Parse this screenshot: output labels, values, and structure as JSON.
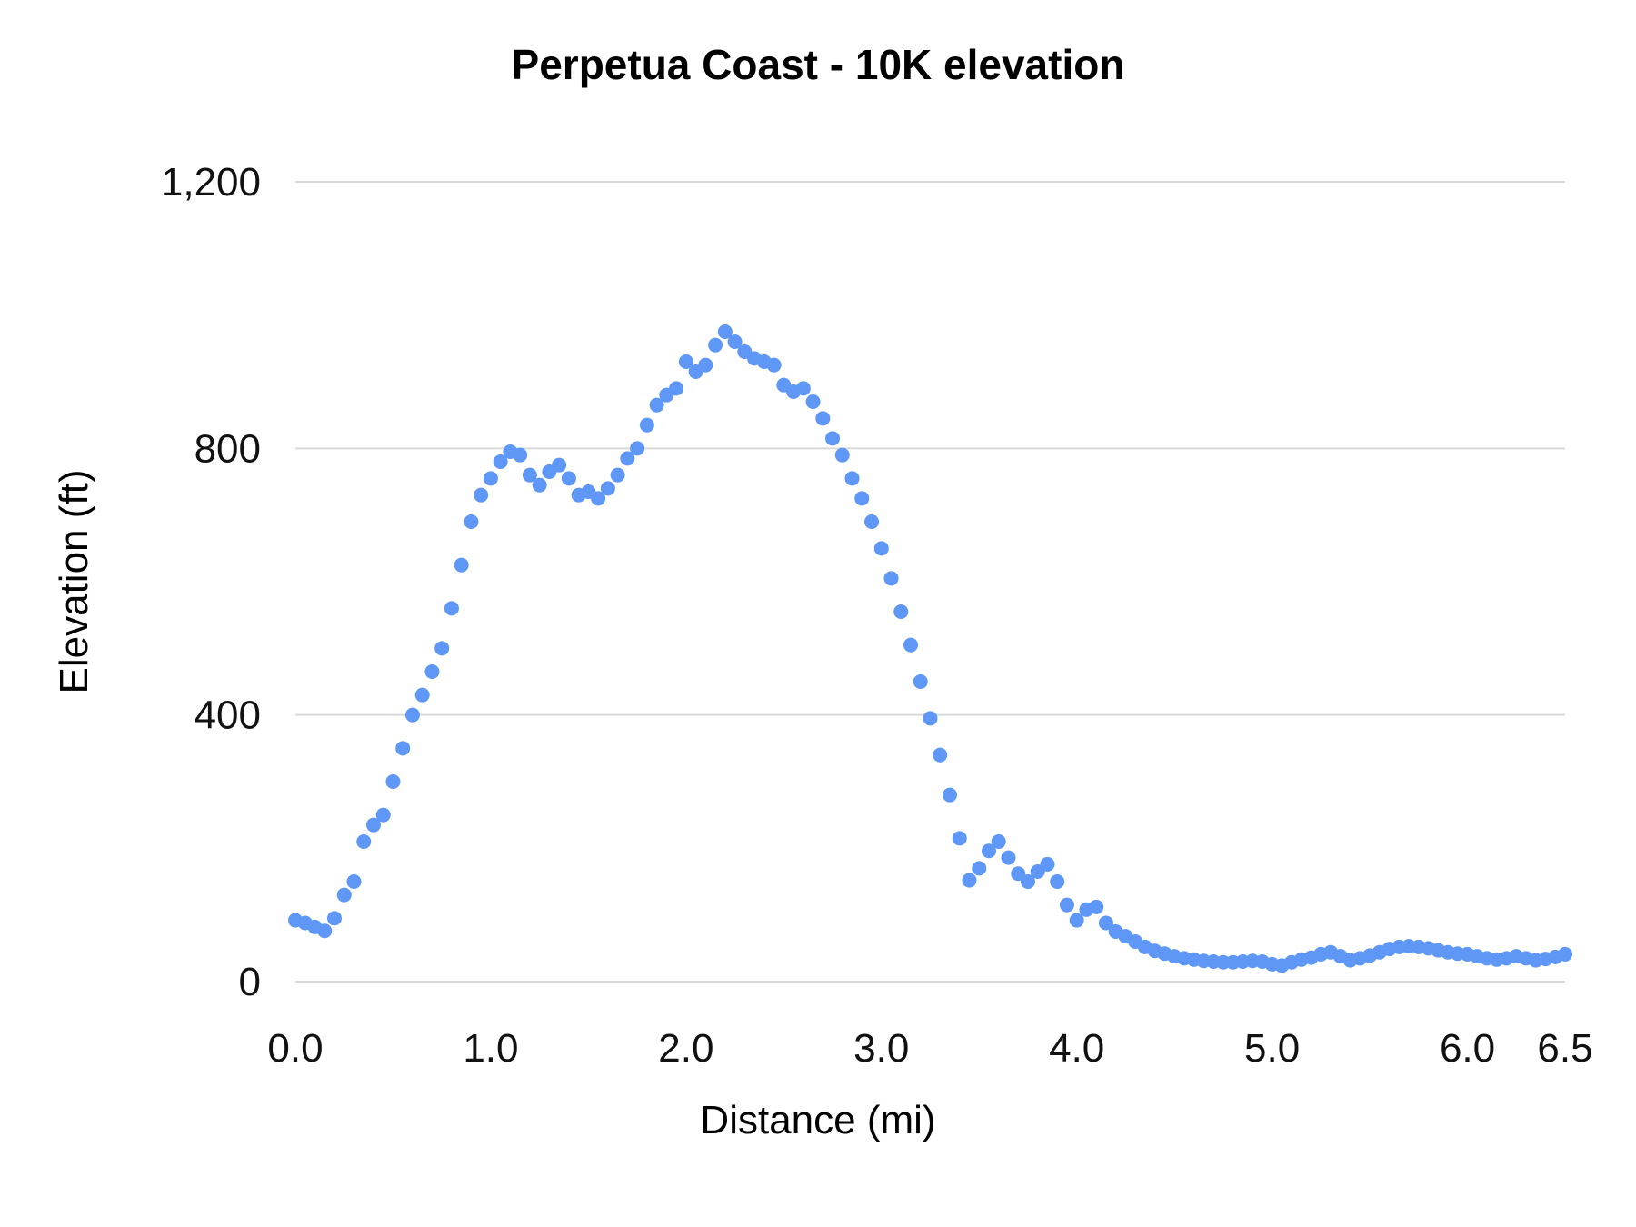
{
  "chart_data": {
    "type": "scatter",
    "title": "Perpetua Coast - 10K elevation",
    "xlabel": "Distance (mi)",
    "ylabel": "Elevation (ft)",
    "xlim": [
      0,
      6.5
    ],
    "ylim": [
      0,
      1200
    ],
    "x_ticks": [
      0,
      1,
      2,
      3,
      4,
      5,
      6,
      6.5
    ],
    "x_tick_labels": [
      "0.0",
      "1.0",
      "2.0",
      "3.0",
      "4.0",
      "5.0",
      "6.0",
      "6.5"
    ],
    "y_ticks": [
      0,
      400,
      800,
      1200
    ],
    "y_tick_labels": [
      "0",
      "400",
      "800",
      "1,200"
    ],
    "grid": true,
    "legend": "none",
    "point_color": "#5e97f6",
    "grid_color": "#d9d9d9",
    "points": [
      [
        0,
        92
      ],
      [
        0.05,
        88
      ],
      [
        0.1,
        82
      ],
      [
        0.15,
        76
      ],
      [
        0.2,
        95
      ],
      [
        0.25,
        130
      ],
      [
        0.3,
        150
      ],
      [
        0.35,
        210
      ],
      [
        0.4,
        235
      ],
      [
        0.45,
        250
      ],
      [
        0.5,
        300
      ],
      [
        0.55,
        350
      ],
      [
        0.6,
        400
      ],
      [
        0.65,
        430
      ],
      [
        0.7,
        465
      ],
      [
        0.75,
        500
      ],
      [
        0.8,
        560
      ],
      [
        0.85,
        625
      ],
      [
        0.9,
        690
      ],
      [
        0.95,
        730
      ],
      [
        1,
        755
      ],
      [
        1.05,
        780
      ],
      [
        1.1,
        795
      ],
      [
        1.15,
        790
      ],
      [
        1.2,
        760
      ],
      [
        1.25,
        745
      ],
      [
        1.3,
        765
      ],
      [
        1.35,
        775
      ],
      [
        1.4,
        755
      ],
      [
        1.45,
        730
      ],
      [
        1.5,
        735
      ],
      [
        1.55,
        725
      ],
      [
        1.6,
        740
      ],
      [
        1.65,
        760
      ],
      [
        1.7,
        785
      ],
      [
        1.75,
        800
      ],
      [
        1.8,
        835
      ],
      [
        1.85,
        865
      ],
      [
        1.9,
        880
      ],
      [
        1.95,
        890
      ],
      [
        2,
        930
      ],
      [
        2.05,
        915
      ],
      [
        2.1,
        925
      ],
      [
        2.15,
        955
      ],
      [
        2.2,
        975
      ],
      [
        2.25,
        960
      ],
      [
        2.3,
        945
      ],
      [
        2.35,
        935
      ],
      [
        2.4,
        930
      ],
      [
        2.45,
        925
      ],
      [
        2.5,
        895
      ],
      [
        2.55,
        885
      ],
      [
        2.6,
        890
      ],
      [
        2.65,
        870
      ],
      [
        2.7,
        845
      ],
      [
        2.75,
        815
      ],
      [
        2.8,
        790
      ],
      [
        2.85,
        755
      ],
      [
        2.9,
        725
      ],
      [
        2.95,
        690
      ],
      [
        3,
        650
      ],
      [
        3.05,
        605
      ],
      [
        3.1,
        555
      ],
      [
        3.15,
        505
      ],
      [
        3.2,
        450
      ],
      [
        3.25,
        395
      ],
      [
        3.3,
        340
      ],
      [
        3.35,
        280
      ],
      [
        3.4,
        215
      ],
      [
        3.45,
        152
      ],
      [
        3.5,
        170
      ],
      [
        3.55,
        196
      ],
      [
        3.6,
        210
      ],
      [
        3.65,
        186
      ],
      [
        3.7,
        162
      ],
      [
        3.75,
        150
      ],
      [
        3.8,
        165
      ],
      [
        3.85,
        176
      ],
      [
        3.9,
        150
      ],
      [
        3.95,
        115
      ],
      [
        4,
        92
      ],
      [
        4.05,
        108
      ],
      [
        4.1,
        112
      ],
      [
        4.15,
        88
      ],
      [
        4.2,
        75
      ],
      [
        4.25,
        68
      ],
      [
        4.3,
        60
      ],
      [
        4.35,
        52
      ],
      [
        4.4,
        46
      ],
      [
        4.45,
        42
      ],
      [
        4.5,
        38
      ],
      [
        4.55,
        35
      ],
      [
        4.6,
        33
      ],
      [
        4.65,
        31
      ],
      [
        4.7,
        30
      ],
      [
        4.75,
        29
      ],
      [
        4.8,
        29
      ],
      [
        4.85,
        30
      ],
      [
        4.9,
        31
      ],
      [
        4.95,
        30
      ],
      [
        5,
        26
      ],
      [
        5.05,
        24
      ],
      [
        5.1,
        29
      ],
      [
        5.15,
        33
      ],
      [
        5.2,
        36
      ],
      [
        5.25,
        41
      ],
      [
        5.3,
        44
      ],
      [
        5.35,
        38
      ],
      [
        5.4,
        32
      ],
      [
        5.45,
        35
      ],
      [
        5.5,
        39
      ],
      [
        5.55,
        44
      ],
      [
        5.6,
        49
      ],
      [
        5.65,
        52
      ],
      [
        5.7,
        53
      ],
      [
        5.75,
        52
      ],
      [
        5.8,
        50
      ],
      [
        5.85,
        47
      ],
      [
        5.9,
        44
      ],
      [
        5.95,
        42
      ],
      [
        6,
        41
      ],
      [
        6.05,
        38
      ],
      [
        6.1,
        35
      ],
      [
        6.15,
        33
      ],
      [
        6.2,
        35
      ],
      [
        6.25,
        38
      ],
      [
        6.3,
        35
      ],
      [
        6.35,
        32
      ],
      [
        6.4,
        34
      ],
      [
        6.45,
        37
      ],
      [
        6.5,
        41
      ]
    ]
  }
}
